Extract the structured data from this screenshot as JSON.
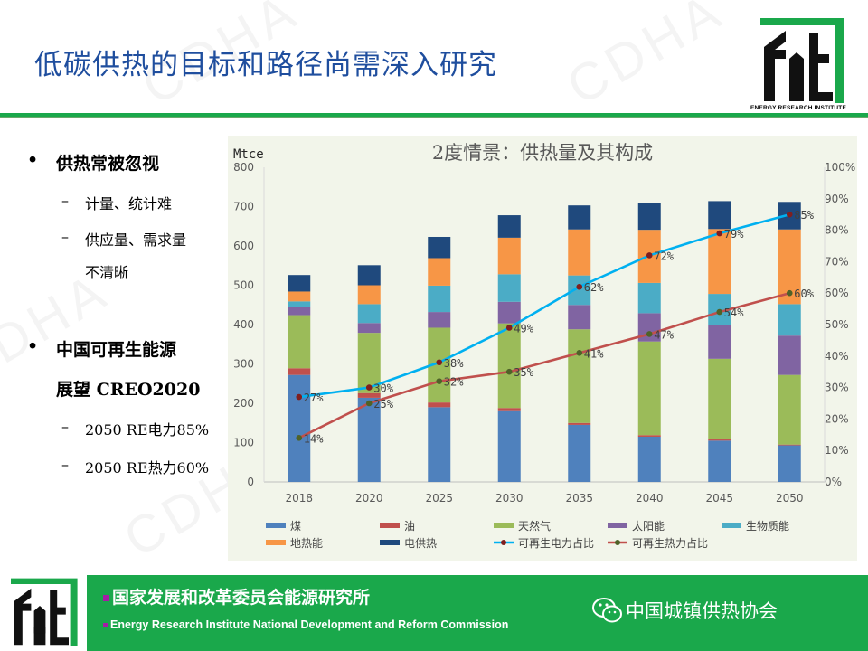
{
  "title": "低碳供热的目标和路径尚需深入研究",
  "logo": {
    "caption": "ENERGY RESEARCH INSTITUTE"
  },
  "watermark": "CDHA",
  "bullets": [
    {
      "text": "供热常被忽视",
      "subs": [
        "计量、统计难",
        "供应量、需求量",
        "不清晰"
      ]
    },
    {
      "text_line1": "中国可再生能源",
      "text_line2": "展望 CREO2020",
      "subs": [
        "2050 RE电力85%",
        "2050 RE热力60%"
      ]
    }
  ],
  "chart_data": {
    "type": "bar",
    "stacked": true,
    "title": "2度情景：供热量及其构成",
    "ylabel": "Mtce",
    "ylim": [
      0,
      800
    ],
    "y2lim": [
      0,
      100
    ],
    "yticks": [
      "0",
      "100",
      "200",
      "300",
      "400",
      "500",
      "600",
      "700",
      "800"
    ],
    "y2ticks": [
      "0%",
      "10%",
      "20%",
      "30%",
      "40%",
      "50%",
      "60%",
      "70%",
      "80%",
      "90%",
      "100%"
    ],
    "categories": [
      "2018",
      "2020",
      "2025",
      "2030",
      "2035",
      "2040",
      "2045",
      "2050"
    ],
    "series": [
      {
        "name": "煤",
        "color": "#4f81bd",
        "values": [
          272,
          214,
          190,
          180,
          145,
          115,
          105,
          93
        ]
      },
      {
        "name": "油",
        "color": "#c0504d",
        "values": [
          17,
          12,
          12,
          8,
          5,
          4,
          3,
          2
        ]
      },
      {
        "name": "天然气",
        "color": "#9bbb59",
        "values": [
          135,
          153,
          190,
          215,
          238,
          238,
          205,
          177
        ]
      },
      {
        "name": "太阳能",
        "color": "#8064a2",
        "values": [
          20,
          25,
          40,
          55,
          62,
          72,
          85,
          100
        ]
      },
      {
        "name": "生物质能",
        "color": "#4bacc6",
        "values": [
          15,
          48,
          67,
          70,
          75,
          77,
          80,
          80
        ]
      },
      {
        "name": "地热能",
        "color": "#f79646",
        "values": [
          25,
          48,
          70,
          93,
          117,
          135,
          165,
          190
        ]
      },
      {
        "name": "电供热",
        "color": "#1f497d",
        "values": [
          42,
          51,
          54,
          57,
          61,
          68,
          71,
          70
        ]
      }
    ],
    "lines": [
      {
        "name": "可再生电力占比",
        "color": "#00b0f0",
        "marker": "#7f1f1f",
        "values": [
          27,
          30,
          38,
          49,
          62,
          72,
          79,
          85
        ],
        "labels": [
          "27%",
          "30%",
          "38%",
          "49%",
          "62%",
          "72%",
          "79%",
          "85%"
        ]
      },
      {
        "name": "可再生热力占比",
        "color": "#c0504d",
        "marker": "#4f6228",
        "values": [
          14,
          25,
          32,
          35,
          41,
          47,
          54,
          60
        ],
        "labels": [
          "14%",
          "25%",
          "32%",
          "35%",
          "41%",
          "47%",
          "54%",
          "60%"
        ]
      }
    ],
    "legend_position": "bottom"
  },
  "footer": {
    "org_cn": "国家发展和改革委员会能源研究所",
    "org_en": "Energy Research Institute National Development and Reform Commission",
    "association": "中国城镇供热协会"
  }
}
